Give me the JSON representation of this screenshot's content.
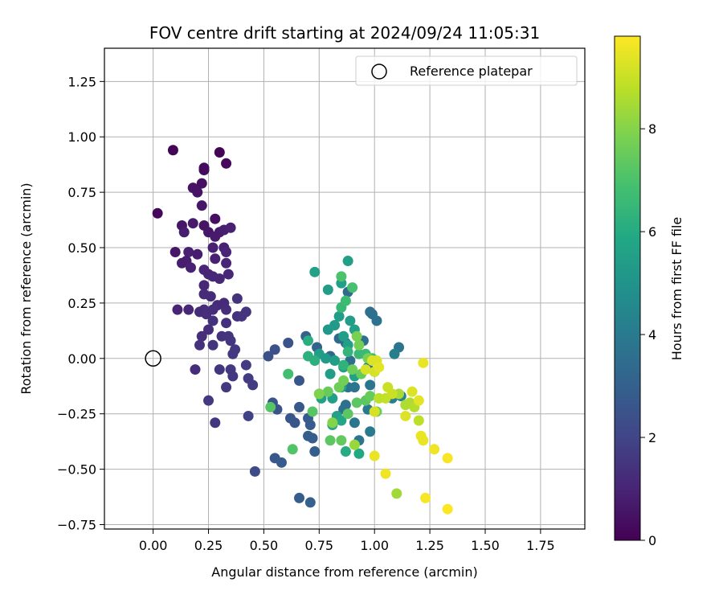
{
  "chart_data": {
    "type": "scatter",
    "title": "FOV centre drift starting at 2024/09/24 11:05:31",
    "xlabel": "Angular distance from reference (arcmin)",
    "ylabel": "Rotation from reference (arcmin)",
    "xlim": [
      -0.22,
      1.95
    ],
    "ylim": [
      -0.77,
      1.4
    ],
    "xticks": [
      0.0,
      0.25,
      0.5,
      0.75,
      1.0,
      1.25,
      1.5,
      1.75
    ],
    "xtick_labels": [
      "0.00",
      "0.25",
      "0.50",
      "0.75",
      "1.00",
      "1.25",
      "1.50",
      "1.75"
    ],
    "yticks": [
      -0.75,
      -0.5,
      -0.25,
      0.0,
      0.25,
      0.5,
      0.75,
      1.0,
      1.25
    ],
    "ytick_labels": [
      "−0.75",
      "−0.50",
      "−0.25",
      "0.00",
      "0.25",
      "0.50",
      "0.75",
      "1.00",
      "1.25"
    ],
    "grid": true,
    "legend": {
      "label": "Reference platepar",
      "placement": "top-right"
    },
    "reference_point": {
      "x": 0.0,
      "y": 0.0
    },
    "colorbar": {
      "label": "Hours from first FF file",
      "colormap": "viridis",
      "range": [
        0,
        9.8
      ],
      "ticks": [
        0,
        2,
        4,
        6,
        8
      ],
      "tick_labels": [
        "0",
        "2",
        "4",
        "6",
        "8"
      ]
    },
    "series": [
      {
        "points": [
          [
            0.09,
            0.94,
            0.1
          ],
          [
            0.3,
            0.93,
            0.1
          ],
          [
            0.23,
            0.86,
            0.3
          ],
          [
            0.23,
            0.85,
            0.3
          ],
          [
            0.33,
            0.88,
            0.2
          ],
          [
            0.02,
            0.655,
            0.2
          ],
          [
            0.22,
            0.79,
            0.4
          ],
          [
            0.18,
            0.77,
            0.5
          ],
          [
            0.2,
            0.75,
            0.5
          ],
          [
            0.22,
            0.69,
            0.6
          ],
          [
            0.28,
            0.63,
            0.4
          ],
          [
            0.13,
            0.6,
            0.6
          ],
          [
            0.18,
            0.61,
            0.7
          ],
          [
            0.23,
            0.6,
            0.5
          ],
          [
            0.14,
            0.57,
            0.8
          ],
          [
            0.25,
            0.57,
            0.6
          ],
          [
            0.28,
            0.55,
            0.7
          ],
          [
            0.3,
            0.57,
            0.7
          ],
          [
            0.32,
            0.58,
            0.8
          ],
          [
            0.35,
            0.59,
            0.9
          ],
          [
            0.1,
            0.48,
            0.6
          ],
          [
            0.13,
            0.43,
            0.8
          ],
          [
            0.16,
            0.48,
            0.9
          ],
          [
            0.2,
            0.47,
            0.8
          ],
          [
            0.27,
            0.5,
            0.9
          ],
          [
            0.32,
            0.5,
            0.9
          ],
          [
            0.33,
            0.48,
            1.0
          ],
          [
            0.15,
            0.44,
            0.8
          ],
          [
            0.28,
            0.45,
            0.9
          ],
          [
            0.33,
            0.43,
            1.0
          ],
          [
            0.17,
            0.41,
            0.9
          ],
          [
            0.23,
            0.4,
            1.0
          ],
          [
            0.25,
            0.38,
            1.0
          ],
          [
            0.27,
            0.37,
            1.1
          ],
          [
            0.3,
            0.36,
            1.1
          ],
          [
            0.34,
            0.38,
            1.1
          ],
          [
            0.23,
            0.33,
            1.1
          ],
          [
            0.23,
            0.29,
            1.2
          ],
          [
            0.26,
            0.28,
            1.2
          ],
          [
            0.29,
            0.24,
            1.2
          ],
          [
            0.27,
            0.22,
            1.3
          ],
          [
            0.23,
            0.22,
            1.3
          ],
          [
            0.32,
            0.25,
            1.2
          ],
          [
            0.33,
            0.22,
            1.3
          ],
          [
            0.38,
            0.27,
            1.4
          ],
          [
            0.11,
            0.22,
            1.0
          ],
          [
            0.16,
            0.22,
            1.1
          ],
          [
            0.21,
            0.21,
            1.2
          ],
          [
            0.24,
            0.2,
            1.3
          ],
          [
            0.38,
            0.19,
            1.4
          ],
          [
            0.42,
            0.21,
            1.5
          ],
          [
            0.4,
            0.19,
            1.5
          ],
          [
            0.27,
            0.17,
            1.4
          ],
          [
            0.33,
            0.16,
            1.4
          ],
          [
            0.22,
            0.1,
            1.3
          ],
          [
            0.25,
            0.13,
            1.3
          ],
          [
            0.31,
            0.1,
            1.4
          ],
          [
            0.34,
            0.1,
            1.5
          ],
          [
            0.35,
            0.08,
            1.5
          ],
          [
            0.21,
            0.06,
            1.4
          ],
          [
            0.27,
            0.06,
            1.5
          ],
          [
            0.36,
            0.02,
            1.6
          ],
          [
            0.37,
            0.04,
            1.6
          ],
          [
            0.19,
            -0.05,
            1.3
          ],
          [
            0.3,
            -0.05,
            1.5
          ],
          [
            0.35,
            -0.05,
            1.6
          ],
          [
            0.36,
            -0.08,
            1.6
          ],
          [
            0.42,
            -0.03,
            1.7
          ],
          [
            0.43,
            -0.09,
            1.7
          ],
          [
            0.45,
            -0.12,
            1.7
          ],
          [
            0.33,
            -0.13,
            1.6
          ],
          [
            0.25,
            -0.19,
            1.6
          ],
          [
            0.28,
            -0.29,
            1.5
          ],
          [
            0.43,
            -0.26,
            1.9
          ],
          [
            0.46,
            -0.51,
            2.2
          ],
          [
            0.52,
            0.01,
            2.4
          ],
          [
            0.55,
            0.04,
            2.4
          ],
          [
            0.61,
            0.07,
            2.5
          ],
          [
            0.66,
            -0.1,
            2.6
          ],
          [
            0.54,
            -0.2,
            2.6
          ],
          [
            0.56,
            -0.23,
            2.5
          ],
          [
            0.62,
            -0.27,
            2.6
          ],
          [
            0.64,
            -0.29,
            2.6
          ],
          [
            0.66,
            -0.22,
            2.7
          ],
          [
            0.7,
            -0.27,
            2.8
          ],
          [
            0.71,
            -0.3,
            2.8
          ],
          [
            0.7,
            -0.35,
            2.9
          ],
          [
            0.72,
            -0.36,
            2.9
          ],
          [
            0.73,
            -0.42,
            2.9
          ],
          [
            0.55,
            -0.45,
            2.7
          ],
          [
            0.58,
            -0.47,
            2.8
          ],
          [
            0.66,
            -0.63,
            2.9
          ],
          [
            0.71,
            -0.65,
            3.0
          ],
          [
            0.69,
            0.1,
            3.0
          ],
          [
            0.74,
            0.05,
            3.1
          ],
          [
            0.8,
            0.01,
            3.2
          ],
          [
            0.84,
            0.09,
            3.3
          ],
          [
            0.87,
            0.07,
            3.4
          ],
          [
            0.88,
            0.3,
            3.4
          ],
          [
            0.98,
            0.21,
            3.6
          ],
          [
            0.99,
            0.2,
            3.6
          ],
          [
            1.01,
            0.17,
            3.7
          ],
          [
            1.11,
            0.05,
            3.8
          ],
          [
            0.95,
            0.08,
            3.6
          ],
          [
            0.89,
            -0.01,
            3.5
          ],
          [
            0.97,
            -0.04,
            3.7
          ],
          [
            0.98,
            -0.12,
            3.8
          ],
          [
            1.0,
            -0.06,
            3.8
          ],
          [
            0.87,
            -0.21,
            3.6
          ],
          [
            0.86,
            -0.23,
            3.7
          ],
          [
            0.91,
            -0.29,
            3.8
          ],
          [
            0.93,
            -0.37,
            3.8
          ],
          [
            0.98,
            -0.33,
            4.0
          ],
          [
            0.97,
            -0.23,
            4.0
          ],
          [
            0.88,
            -0.13,
            3.7
          ],
          [
            0.91,
            -0.13,
            3.8
          ],
          [
            1.08,
            -0.18,
            4.1
          ],
          [
            1.12,
            -0.17,
            4.3
          ],
          [
            1.09,
            0.02,
            4.2
          ],
          [
            0.79,
            0.31,
            5.4
          ],
          [
            0.73,
            0.39,
            5.6
          ],
          [
            0.88,
            0.44,
            5.5
          ],
          [
            0.85,
            0.34,
            5.5
          ],
          [
            0.79,
            0.13,
            5.2
          ],
          [
            0.82,
            0.15,
            5.3
          ],
          [
            0.84,
            0.19,
            5.4
          ],
          [
            0.89,
            0.17,
            5.4
          ],
          [
            0.91,
            0.13,
            5.5
          ],
          [
            0.86,
            0.1,
            5.4
          ],
          [
            0.88,
            0.06,
            5.5
          ],
          [
            0.75,
            0.02,
            5.4
          ],
          [
            0.78,
            0.0,
            5.3
          ],
          [
            0.82,
            -0.01,
            5.4
          ],
          [
            0.8,
            -0.07,
            5.4
          ],
          [
            0.86,
            -0.04,
            5.5
          ],
          [
            0.91,
            -0.08,
            5.6
          ],
          [
            0.85,
            -0.13,
            5.5
          ],
          [
            0.81,
            -0.18,
            5.5
          ],
          [
            0.76,
            -0.18,
            5.6
          ],
          [
            0.83,
            -0.26,
            5.6
          ],
          [
            0.81,
            -0.3,
            5.7
          ],
          [
            0.85,
            -0.28,
            5.8
          ],
          [
            0.93,
            -0.43,
            5.9
          ],
          [
            0.87,
            -0.42,
            6.0
          ],
          [
            0.7,
            0.08,
            6.1
          ],
          [
            0.7,
            0.01,
            6.2
          ],
          [
            0.73,
            -0.01,
            6.2
          ],
          [
            0.86,
            -0.03,
            6.3
          ],
          [
            0.88,
            0.03,
            6.4
          ],
          [
            0.93,
            0.02,
            6.5
          ],
          [
            0.96,
            0.02,
            6.6
          ],
          [
            0.99,
            0.0,
            6.7
          ],
          [
            0.85,
            0.23,
            6.5
          ],
          [
            0.87,
            0.26,
            6.7
          ],
          [
            0.9,
            0.32,
            6.9
          ],
          [
            0.85,
            0.37,
            7.0
          ],
          [
            0.61,
            -0.07,
            6.8
          ],
          [
            0.63,
            -0.41,
            7.1
          ],
          [
            0.53,
            -0.22,
            7.2
          ],
          [
            0.72,
            -0.24,
            7.2
          ],
          [
            0.75,
            -0.16,
            7.4
          ],
          [
            0.8,
            -0.37,
            7.3
          ],
          [
            0.85,
            -0.37,
            7.4
          ],
          [
            0.88,
            -0.25,
            7.3
          ],
          [
            0.92,
            -0.2,
            7.3
          ],
          [
            0.96,
            -0.19,
            7.3
          ],
          [
            1.01,
            -0.24,
            7.6
          ],
          [
            0.98,
            -0.17,
            7.5
          ],
          [
            0.94,
            -0.07,
            7.5
          ],
          [
            0.9,
            -0.05,
            7.6
          ],
          [
            0.79,
            -0.15,
            7.5
          ],
          [
            0.84,
            -0.13,
            7.6
          ],
          [
            0.86,
            -0.1,
            7.7
          ],
          [
            0.93,
            0.06,
            7.7
          ],
          [
            0.92,
            0.1,
            7.8
          ],
          [
            0.97,
            0.0,
            7.8
          ],
          [
            0.75,
            -0.16,
            7.9
          ],
          [
            0.81,
            -0.29,
            8.0
          ],
          [
            0.91,
            -0.39,
            8.3
          ],
          [
            1.1,
            -0.61,
            8.4
          ],
          [
            1.11,
            -0.16,
            8.5
          ],
          [
            1.14,
            -0.21,
            8.6
          ],
          [
            1.16,
            -0.2,
            8.6
          ],
          [
            1.18,
            -0.22,
            8.7
          ],
          [
            1.2,
            -0.28,
            8.8
          ],
          [
            1.02,
            -0.18,
            8.8
          ],
          [
            1.05,
            -0.18,
            8.9
          ],
          [
            1.06,
            -0.13,
            9.0
          ],
          [
            1.08,
            -0.16,
            9.0
          ],
          [
            0.96,
            -0.05,
            9.2
          ],
          [
            1.0,
            -0.06,
            9.2
          ],
          [
            1.01,
            -0.01,
            9.3
          ],
          [
            0.99,
            -0.01,
            9.3
          ],
          [
            1.02,
            -0.04,
            9.4
          ],
          [
            1.22,
            -0.02,
            9.5
          ],
          [
            1.17,
            -0.15,
            9.3
          ],
          [
            1.2,
            -0.19,
            9.4
          ],
          [
            1.14,
            -0.26,
            9.3
          ],
          [
            1.21,
            -0.35,
            9.5
          ],
          [
            1.22,
            -0.37,
            9.5
          ],
          [
            1.27,
            -0.41,
            9.6
          ],
          [
            1.33,
            -0.45,
            9.7
          ],
          [
            1.05,
            -0.52,
            9.6
          ],
          [
            1.0,
            -0.44,
            9.5
          ],
          [
            1.23,
            -0.63,
            9.7
          ],
          [
            1.33,
            -0.68,
            9.8
          ],
          [
            1.0,
            -0.24,
            9.2
          ]
        ]
      }
    ]
  }
}
